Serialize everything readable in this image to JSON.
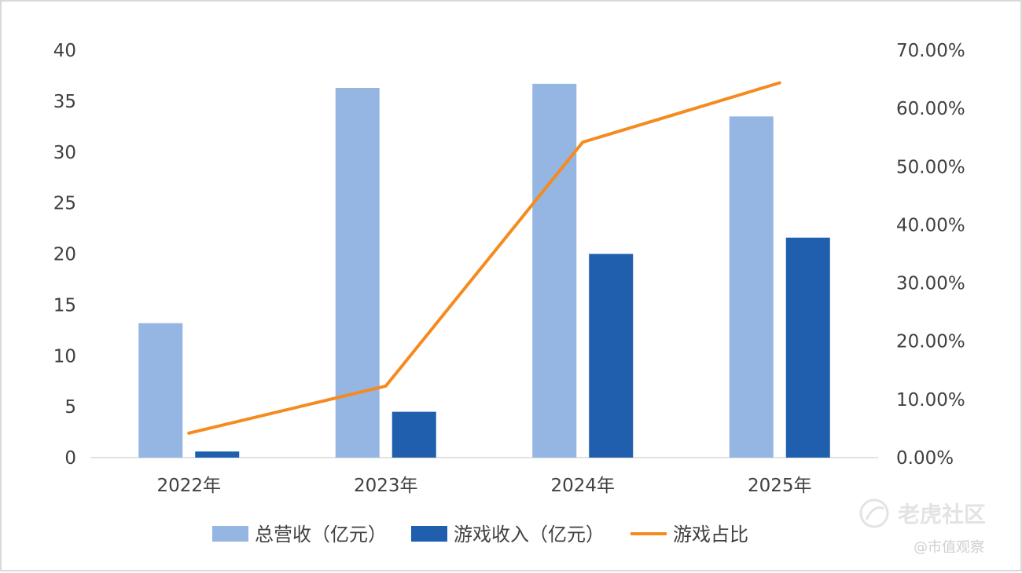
{
  "chart_data": {
    "type": "bar",
    "categories": [
      "2022年",
      "2023年",
      "2024年",
      "2025年"
    ],
    "series": [
      {
        "name": "总营收（亿元）",
        "type": "bar",
        "axis": "left",
        "color": "#95b5e3",
        "values": [
          13.2,
          36.3,
          36.7,
          33.5
        ]
      },
      {
        "name": "游戏收入（亿元）",
        "type": "bar",
        "axis": "left",
        "color": "#1f5fae",
        "values": [
          0.6,
          4.5,
          20.0,
          21.6
        ]
      },
      {
        "name": "游戏占比",
        "type": "line",
        "axis": "right",
        "color": "#f58b1f",
        "values": [
          0.042,
          0.123,
          0.542,
          0.644
        ]
      }
    ],
    "y_left": {
      "min": 0,
      "max": 40,
      "ticks": [
        "0",
        "5",
        "10",
        "15",
        "20",
        "25",
        "30",
        "35",
        "40"
      ]
    },
    "y_right": {
      "min": 0,
      "max": 0.7,
      "ticks": [
        "0.00%",
        "10.00%",
        "20.00%",
        "30.00%",
        "40.00%",
        "50.00%",
        "60.00%",
        "70.00%"
      ]
    },
    "grid": false,
    "legend_position": "bottom"
  },
  "watermark": {
    "brand": "老虎社区",
    "source": "@市值观察"
  }
}
